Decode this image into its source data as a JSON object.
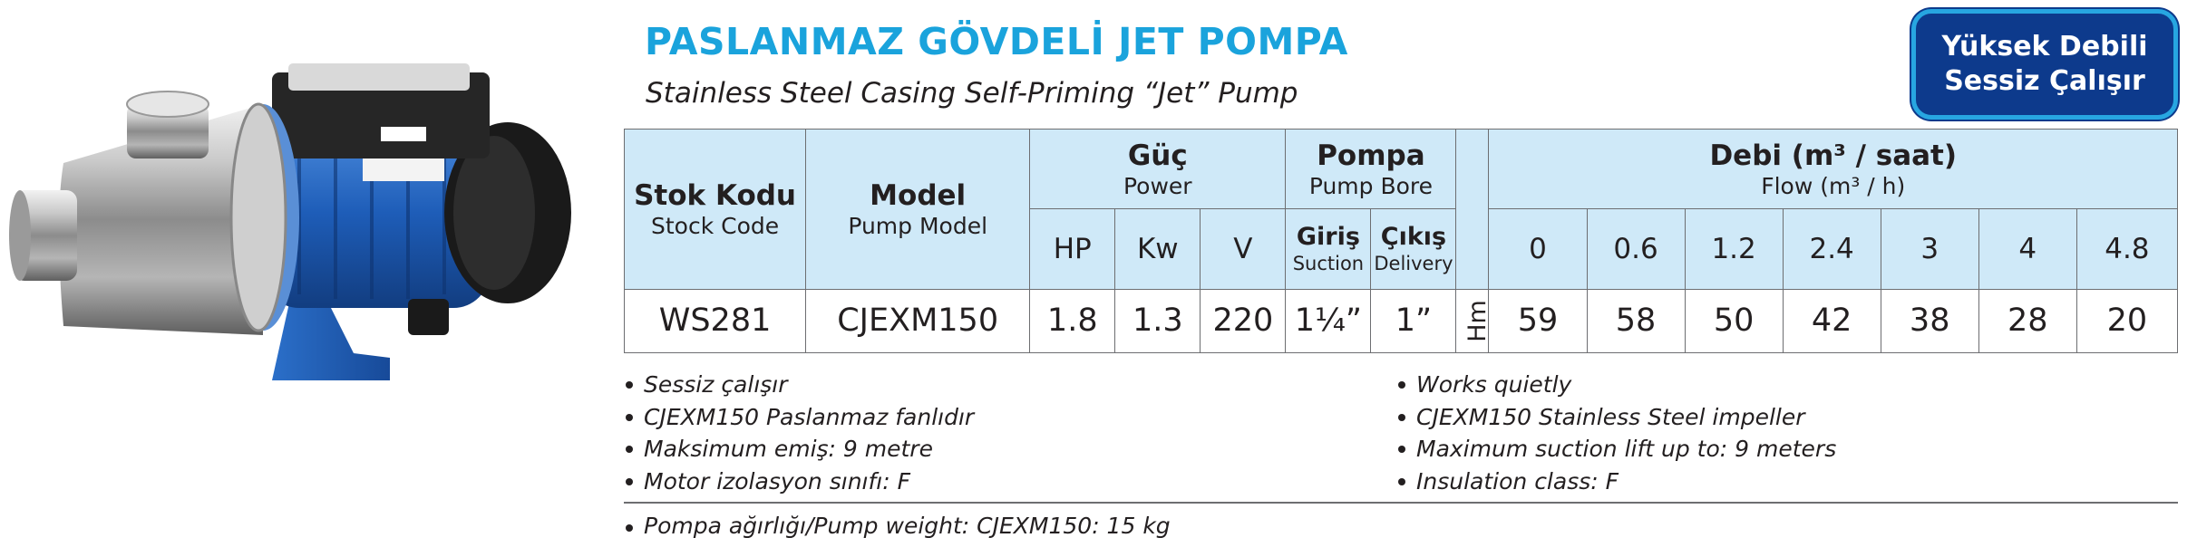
{
  "header": {
    "title": "PASLANMAZ GÖVDELİ JET POMPA",
    "subtitle": "Stainless Steel Casing Self-Priming “Jet” Pump",
    "badge_line1": "Yüksek Debili",
    "badge_line2": "Sessiz Çalışır"
  },
  "table": {
    "stock_code_tr": "Stok Kodu",
    "stock_code_en": "Stock Code",
    "model_tr": "Model",
    "model_en": "Pump Model",
    "power_tr": "Güç",
    "power_en": "Power",
    "bore_tr": "Pompa",
    "bore_en": "Pump Bore",
    "flow_tr": "Debi (m³ / saat)",
    "flow_en": "Flow (m³ / h)",
    "hp": "HP",
    "kw": "Kw",
    "v": "V",
    "suction_tr": "Giriş",
    "suction_en": "Suction",
    "delivery_tr": "Çıkış",
    "delivery_en": "Delivery",
    "head_unit": "Hm",
    "flow_points": [
      "0",
      "0.6",
      "1.2",
      "2.4",
      "3",
      "4",
      "4.8"
    ],
    "row": {
      "code": "WS281",
      "model": "CJEXM150",
      "hp": "1.8",
      "kw": "1.3",
      "v": "220",
      "suction": "1¼”",
      "delivery": "1”",
      "heads": [
        "59",
        "58",
        "50",
        "42",
        "38",
        "28",
        "20"
      ]
    }
  },
  "notes_tr": [
    "Sessiz çalışır",
    "CJEXM150 Paslanmaz fanlıdır",
    "Maksimum emiş: 9 metre",
    "Motor izolasyon sınıfı: F"
  ],
  "notes_en": [
    "Works quietly",
    "CJEXM150 Stainless Steel  impeller",
    "Maximum suction lift up to: 9 meters",
    "Insulation class: F"
  ],
  "weight_note": "Pompa ağırlığı/Pump weight: CJEXM150: 15 kg",
  "colors": {
    "title_blue": "#1aa3dc",
    "badge_navy": "#0d3a8c",
    "header_fill": "#cfe9f8",
    "motor_blue": "#1e5db8"
  },
  "image": {
    "subject": "stainless-steel-jet-pump-photo"
  }
}
